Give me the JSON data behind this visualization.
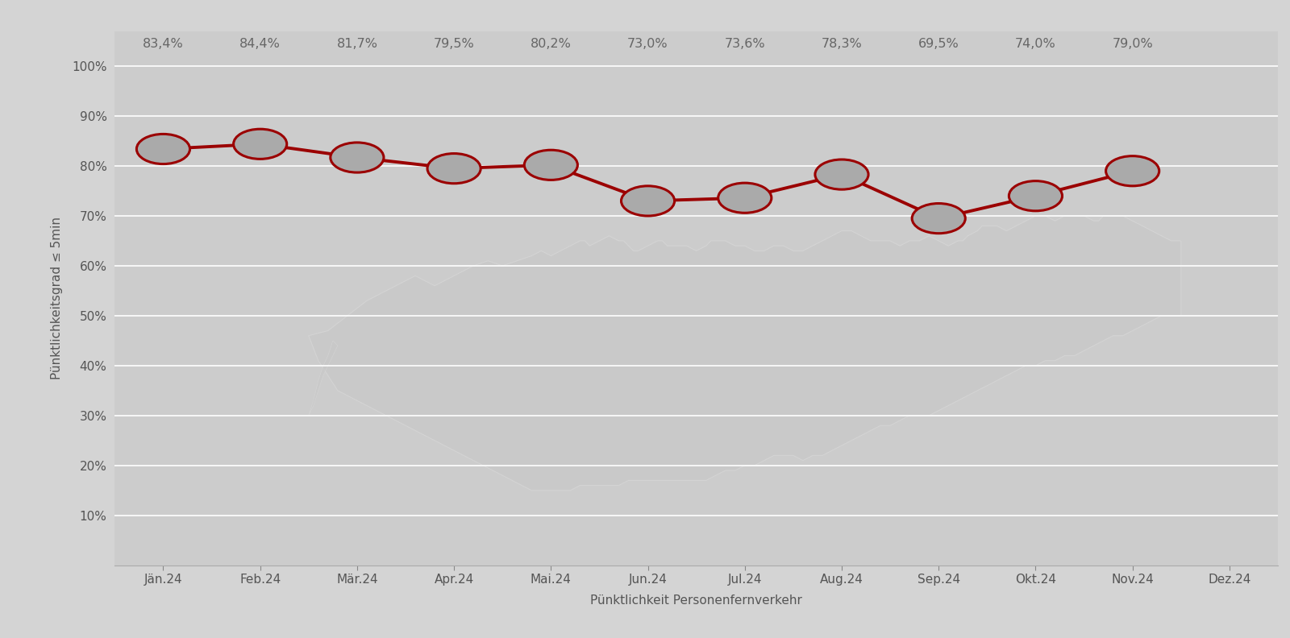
{
  "months": [
    "Jän.24",
    "Feb.24",
    "Mär.24",
    "Apr.24",
    "Mai.24",
    "Jun.24",
    "Jul.24",
    "Aug.24",
    "Sep.24",
    "Okt.24",
    "Nov.24",
    "Dez.24"
  ],
  "values": [
    83.4,
    84.4,
    81.7,
    79.5,
    80.2,
    73.0,
    73.6,
    78.3,
    69.5,
    74.0,
    79.0,
    null
  ],
  "labels": [
    "83,4%",
    "84,4%",
    "81,7%",
    "79,5%",
    "80,2%",
    "73,0%",
    "73,6%",
    "78,3%",
    "69,5%",
    "74,0%",
    "79,0%"
  ],
  "line_color": "#9B0000",
  "marker_facecolor": "#AAAAAA",
  "marker_edgecolor": "#9B0000",
  "bg_color": "#D4D4D4",
  "plot_bg_color": "#CCCCCC",
  "grid_color": "#FFFFFF",
  "ylabel": "Pünktlichkeitsgrad ≤ 5min",
  "xlabel": "Pünktlichkeit Personenfernverkehr",
  "yticks": [
    10,
    20,
    30,
    40,
    50,
    60,
    70,
    80,
    90,
    100
  ],
  "ylim": [
    0,
    107
  ],
  "label_color": "#666666",
  "tick_label_color": "#555555",
  "map_facecolor": "#BBBBBB",
  "map_edgecolor": "#D0D0D0",
  "austria_outer_x": [
    1.8,
    2.0,
    2.1,
    2.15,
    2.3,
    2.5,
    2.7,
    2.8,
    2.85,
    2.9,
    3.0,
    3.15,
    3.3,
    3.45,
    3.5,
    3.6,
    3.7,
    3.8,
    3.9,
    4.0,
    4.1,
    4.2,
    4.3,
    4.4,
    4.5,
    4.6,
    4.65,
    4.7,
    4.8,
    4.85,
    4.9,
    5.0,
    5.1,
    5.2,
    5.3,
    5.4,
    5.5,
    5.6,
    5.7,
    5.8,
    5.9,
    6.0,
    6.1,
    6.2,
    6.3,
    6.4,
    6.5,
    6.6,
    6.7,
    6.8,
    6.9,
    7.0,
    7.1,
    7.2,
    7.3,
    7.4,
    7.5,
    7.6,
    7.7,
    7.8,
    7.9,
    8.0,
    8.1,
    8.2,
    8.3,
    8.4,
    8.5,
    8.6,
    8.7,
    8.8,
    8.9,
    9.0,
    9.1,
    9.2,
    9.3,
    9.4,
    9.5,
    9.6,
    9.7,
    9.8,
    9.9,
    10.0,
    10.1,
    10.2,
    10.3,
    10.4,
    10.5,
    10.5,
    10.4,
    10.3,
    10.2,
    10.1,
    10.0,
    9.9,
    9.8,
    9.7,
    9.6,
    9.5,
    9.4,
    9.3,
    9.2,
    9.1,
    9.0,
    8.9,
    8.8,
    8.7,
    8.6,
    8.5,
    8.4,
    8.3,
    8.2,
    8.1,
    8.0,
    7.9,
    7.8,
    7.7,
    7.6,
    7.5,
    7.4,
    7.3,
    7.2,
    7.1,
    7.0,
    6.9,
    6.8,
    6.7,
    6.6,
    6.5,
    6.4,
    6.3,
    6.2,
    6.1,
    6.0,
    5.9,
    5.8,
    5.7,
    5.6,
    5.5,
    5.4,
    5.3,
    5.2,
    5.1,
    5.0,
    4.9,
    4.8,
    4.7,
    4.6,
    4.5,
    4.4,
    4.3,
    4.2,
    4.1,
    4.0,
    3.9,
    3.8,
    3.7,
    3.6,
    3.5,
    3.4,
    3.3,
    3.2,
    3.1,
    3.0,
    2.9,
    2.8,
    2.7,
    2.6,
    2.5,
    2.4,
    2.3,
    2.2,
    2.1,
    2.0,
    1.9,
    1.8
  ]
}
